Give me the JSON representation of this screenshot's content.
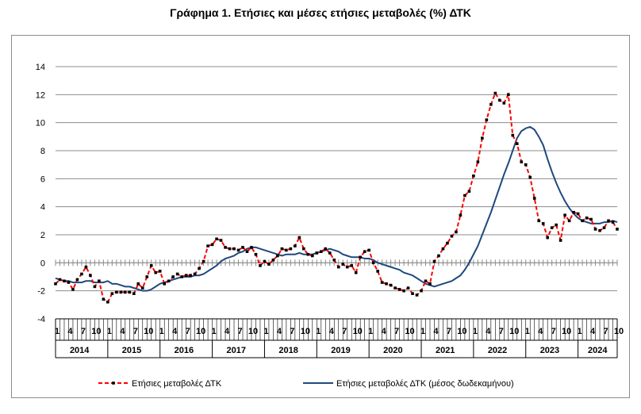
{
  "chart_data": {
    "type": "line",
    "title": "Γράφημα 1. Ετήσιες και μέσες ετήσιες μεταβολές (%) ΔΤΚ",
    "xlabel": "",
    "ylabel": "",
    "ylim": [
      -4,
      14
    ],
    "yticks": [
      "-4",
      "-2",
      "0",
      "2",
      "4",
      "6",
      "8",
      "10",
      "12",
      "14"
    ],
    "grid": true,
    "legend_position": "bottom",
    "month_tick_labels": [
      "1",
      "4",
      "7",
      "10"
    ],
    "years": [
      "2014",
      "2015",
      "2016",
      "2017",
      "2018",
      "2019",
      "2020",
      "2021",
      "2022",
      "2023",
      "2024"
    ],
    "x_start": "2014-01",
    "x_end": "2024-10",
    "series": [
      {
        "name": "Ετήσιες μεταβολές ΔΤΚ",
        "color": "#ff0000",
        "marker_color": "#000000",
        "style": "dashed",
        "values": [
          -1.5,
          -1.2,
          -1.3,
          -1.4,
          -1.9,
          -1.2,
          -0.8,
          -0.3,
          -0.9,
          -1.7,
          -1.3,
          -2.6,
          -2.8,
          -2.2,
          -2.1,
          -2.1,
          -2.1,
          -2.1,
          -2.2,
          -1.5,
          -1.8,
          -1.0,
          -0.2,
          -0.7,
          -0.6,
          -1.5,
          -1.3,
          -1.0,
          -0.8,
          -1.0,
          -0.9,
          -0.9,
          -0.8,
          -0.4,
          0.1,
          1.2,
          1.3,
          1.7,
          1.6,
          1.1,
          1.0,
          1.0,
          0.9,
          1.1,
          0.8,
          1.1,
          0.6,
          -0.2,
          0.1,
          -0.1,
          0.2,
          0.5,
          1.0,
          0.9,
          1.0,
          1.2,
          1.8,
          1.0,
          0.6,
          0.5,
          0.7,
          0.8,
          1.0,
          0.7,
          0.2,
          -0.3,
          -0.1,
          -0.3,
          -0.2,
          -0.7,
          0.4,
          0.8,
          0.9,
          0.0,
          -0.6,
          -1.4,
          -1.5,
          -1.6,
          -1.8,
          -1.9,
          -2.0,
          -1.8,
          -2.2,
          -2.3,
          -2.0,
          -1.3,
          -1.5,
          0.1,
          0.5,
          1.0,
          1.4,
          1.9,
          2.2,
          3.4,
          4.8,
          5.1,
          6.2,
          7.2,
          8.9,
          10.2,
          11.3,
          12.1,
          11.6,
          11.4,
          12.0,
          9.1,
          8.5,
          7.2,
          7.0,
          6.1,
          4.6,
          3.0,
          2.8,
          1.8,
          2.5,
          2.7,
          1.6,
          3.4,
          3.0,
          3.6,
          3.5,
          3.0,
          3.2,
          3.1,
          2.4,
          2.3,
          2.5,
          3.0,
          2.9,
          2.4
        ]
      },
      {
        "name": "Ετήσιες μεταβολές ΔΤΚ (μέσος δωδεκαμήνου)",
        "color": "#1f497d",
        "style": "solid",
        "values": [
          -1.1,
          -1.2,
          -1.3,
          -1.3,
          -1.4,
          -1.4,
          -1.4,
          -1.3,
          -1.3,
          -1.4,
          -1.4,
          -1.4,
          -1.3,
          -1.5,
          -1.5,
          -1.6,
          -1.7,
          -1.7,
          -1.8,
          -1.9,
          -2.0,
          -2.0,
          -1.9,
          -1.7,
          -1.5,
          -1.4,
          -1.3,
          -1.2,
          -1.1,
          -1.0,
          -1.0,
          -1.0,
          -0.9,
          -0.9,
          -0.8,
          -0.6,
          -0.4,
          -0.2,
          0.1,
          0.3,
          0.4,
          0.5,
          0.7,
          0.8,
          1.0,
          1.1,
          1.1,
          1.0,
          0.9,
          0.8,
          0.7,
          0.6,
          0.5,
          0.6,
          0.6,
          0.6,
          0.7,
          0.6,
          0.6,
          0.6,
          0.7,
          0.8,
          0.9,
          1.0,
          0.9,
          0.8,
          0.6,
          0.5,
          0.4,
          0.4,
          0.4,
          0.3,
          0.3,
          0.2,
          0.0,
          -0.1,
          -0.2,
          -0.3,
          -0.4,
          -0.5,
          -0.7,
          -0.8,
          -0.9,
          -1.1,
          -1.3,
          -1.5,
          -1.6,
          -1.7,
          -1.6,
          -1.5,
          -1.4,
          -1.3,
          -1.1,
          -0.9,
          -0.5,
          0.0,
          0.6,
          1.2,
          2.0,
          2.8,
          3.6,
          4.5,
          5.4,
          6.3,
          7.1,
          8.0,
          8.9,
          9.4,
          9.6,
          9.7,
          9.5,
          9.0,
          8.4,
          7.4,
          6.5,
          5.7,
          5.0,
          4.4,
          3.9,
          3.5,
          3.2,
          3.0,
          2.9,
          2.8,
          2.8,
          2.8,
          2.9,
          2.9,
          3.0,
          2.9
        ]
      }
    ]
  }
}
